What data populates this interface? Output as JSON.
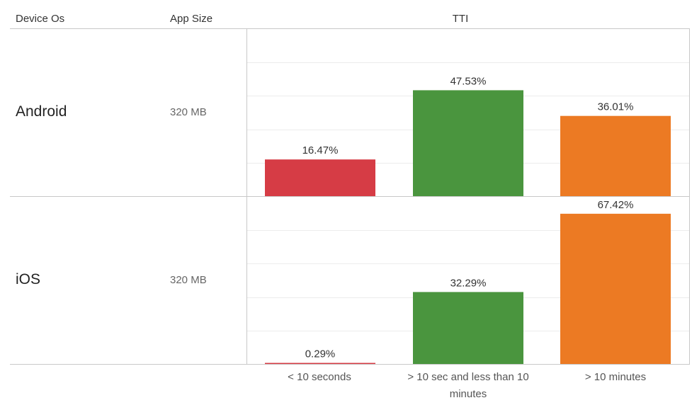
{
  "headers": {
    "device_os": "Device Os",
    "app_size": "App Size",
    "tti": "TTI"
  },
  "rows": [
    {
      "device": "Android",
      "app_size": "320 MB"
    },
    {
      "device": "iOS",
      "app_size": "320 MB"
    }
  ],
  "chart_data": {
    "type": "bar",
    "title": "TTI",
    "categories": [
      "< 10 seconds",
      "> 10 sec and less than 10 minutes",
      "> 10 minutes"
    ],
    "category_colors": [
      "#d63c45",
      "#4a953e",
      "#ec7a23"
    ],
    "ylim": [
      0,
      75
    ],
    "grid": true,
    "panels": [
      {
        "name": "Android",
        "values": [
          16.47,
          47.53,
          36.01
        ],
        "labels": [
          "16.47%",
          "47.53%",
          "36.01%"
        ]
      },
      {
        "name": "iOS",
        "values": [
          0.29,
          32.29,
          67.42
        ],
        "labels": [
          "0.29%",
          "32.29%",
          "67.42%"
        ]
      }
    ]
  }
}
